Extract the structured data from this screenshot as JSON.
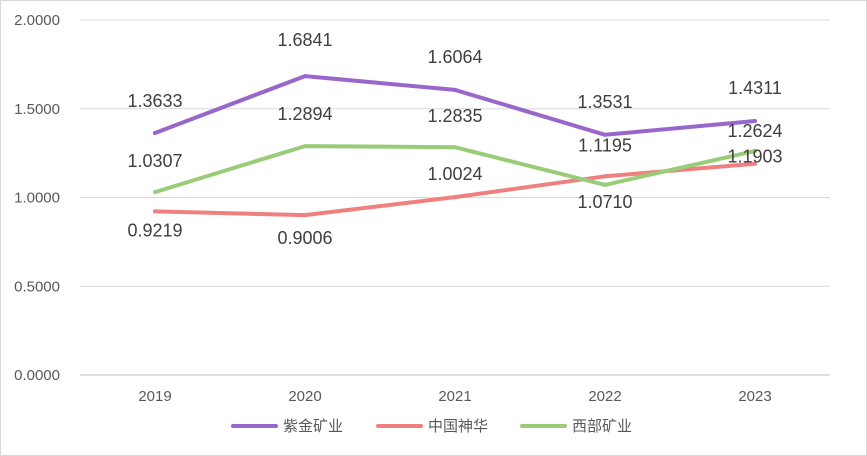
{
  "chart_data": {
    "type": "line",
    "title": "",
    "xlabel": "",
    "ylabel": "",
    "categories": [
      "2019",
      "2020",
      "2021",
      "2022",
      "2023"
    ],
    "ylim": [
      0,
      2
    ],
    "yticks": [
      "0.0000",
      "0.5000",
      "1.0000",
      "1.5000",
      "2.0000"
    ],
    "grid": true,
    "legend_position": "bottom",
    "series": [
      {
        "name": "紫金矿业",
        "color": "#9966cc",
        "values": [
          1.3633,
          1.6841,
          1.6064,
          1.3531,
          1.4311
        ],
        "labels": [
          "1.3633",
          "1.6841",
          "1.6064",
          "1.3531",
          "1.4311"
        ]
      },
      {
        "name": "中国神华",
        "color": "#f08080",
        "values": [
          0.9219,
          0.9006,
          1.0024,
          1.1195,
          1.1903
        ],
        "labels": [
          "0.9219",
          "0.9006",
          "1.0024",
          "1.1195",
          "1.1903"
        ]
      },
      {
        "name": "西部矿业",
        "color": "#99cc77",
        "values": [
          1.0307,
          1.2894,
          1.2835,
          1.071,
          1.2624
        ],
        "labels": [
          "1.0307",
          "1.2894",
          "1.2835",
          "1.0710",
          "1.2624"
        ]
      }
    ]
  }
}
